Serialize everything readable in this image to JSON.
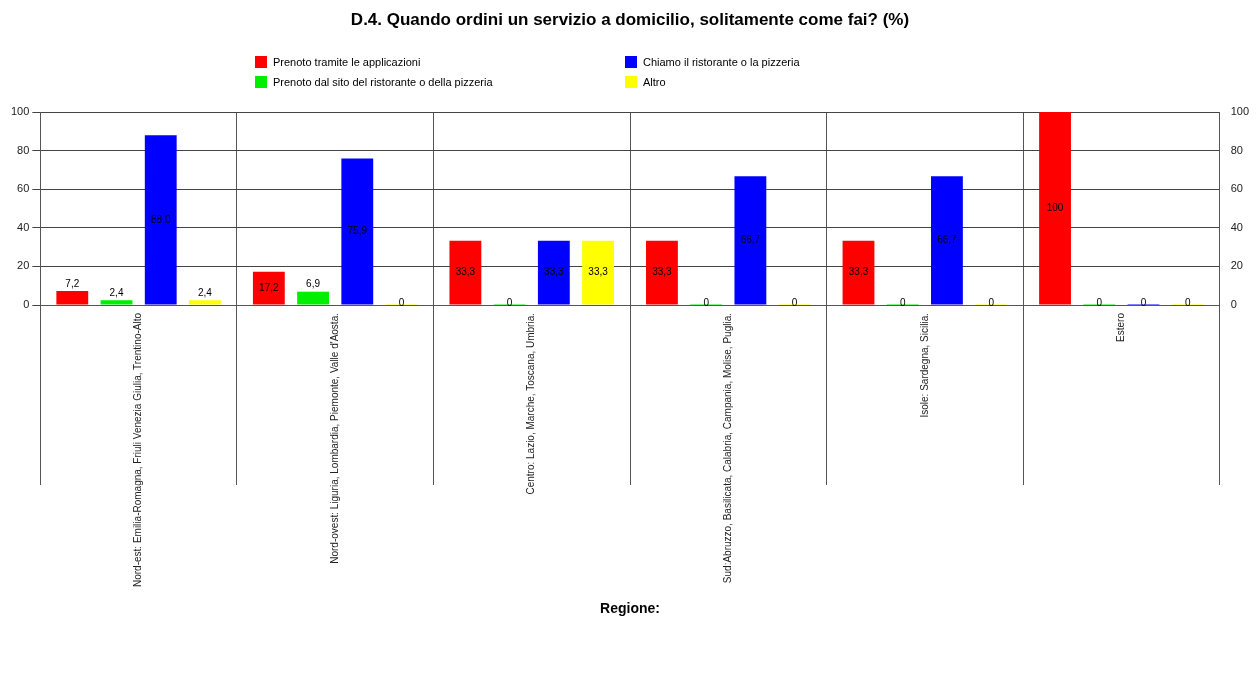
{
  "chart_data": {
    "type": "bar",
    "title": "D.4. Quando ordini un servizio a domicilio, solitamente come fai? (%)",
    "xlabel": "Regione:",
    "categories": [
      "Nord-est: Emilia-Romagna, Friuli Venezia Giulia, Trentino-Alto",
      "Nord-ovest: Liguria, Lombardia, Piemonte, Valle d'Aosta.",
      "Centro: Lazio, Marche, Toscana, Umbria.",
      "Sud:Abruzzo, Basilicata, Calabria, Campania, Molise, Puglia.",
      "Isole: Sardegna, Sicilia.",
      "Estero"
    ],
    "series": [
      {
        "name": "Prenoto tramite le applicazioni",
        "color": "#ff0000",
        "values": [
          7.2,
          17.2,
          33.3,
          33.3,
          33.3,
          100
        ],
        "value_labels": [
          "7,2",
          "17,2",
          "33,3",
          "33,3",
          "33,3",
          "100"
        ]
      },
      {
        "name": "Prenoto dal sito del ristorante o della pizzeria",
        "color": "#00ee00",
        "values": [
          2.4,
          6.9,
          0,
          0,
          0,
          0
        ],
        "value_labels": [
          "2,4",
          "6,9",
          "0",
          "0",
          "0",
          "0"
        ]
      },
      {
        "name": "Chiamo il ristorante o la pizzeria",
        "color": "#0000ff",
        "values": [
          88.0,
          75.9,
          33.3,
          66.7,
          66.7,
          0
        ],
        "value_labels": [
          "88,0",
          "75,9",
          "33,3",
          "66,7",
          "66,7",
          "0"
        ]
      },
      {
        "name": "Altro",
        "color": "#ffff00",
        "values": [
          2.4,
          0,
          33.3,
          0,
          0,
          0
        ],
        "value_labels": [
          "2,4",
          "0",
          "33,3",
          "0",
          "0",
          "0"
        ]
      }
    ],
    "ylim": [
      0,
      100
    ],
    "yticks": [
      0,
      20,
      40,
      60,
      80,
      100
    ],
    "y2lim": [
      0,
      100
    ],
    "y2ticks": [
      0,
      20,
      40,
      60,
      80,
      100
    ],
    "grid": true,
    "legend": "top"
  }
}
